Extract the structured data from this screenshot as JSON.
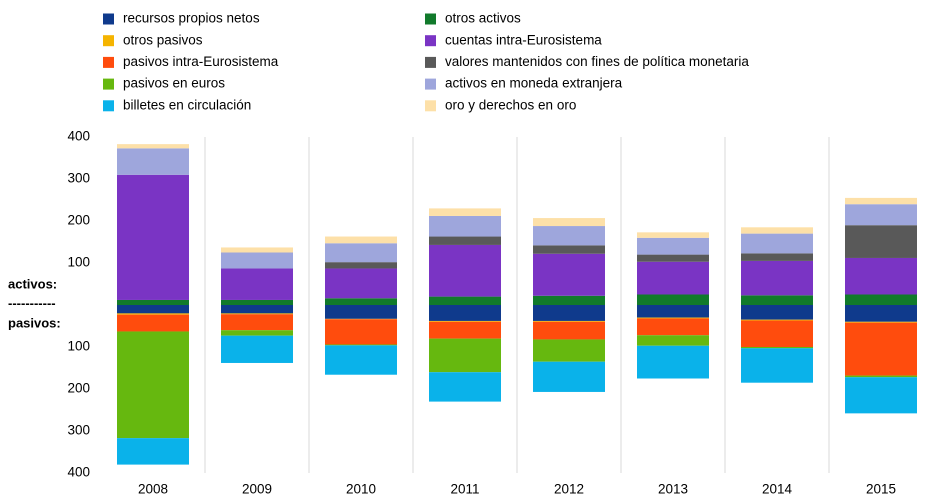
{
  "chart_data": {
    "type": "bar",
    "stacked": true,
    "categories": [
      "2008",
      "2009",
      "2010",
      "2011",
      "2012",
      "2013",
      "2014",
      "2015"
    ],
    "series": [
      {
        "name": "recursos propios netos",
        "color": "#0f3a8c",
        "values": [
          -20,
          -20,
          -33,
          -38,
          -38,
          -30,
          -35,
          -40
        ]
      },
      {
        "name": "otros activos",
        "color": "#117a2b",
        "values": [
          12,
          12,
          16,
          20,
          22,
          25,
          23,
          25
        ]
      },
      {
        "name": "otros pasivos",
        "color": "#f5b400",
        "values": [
          -3,
          -2,
          -1,
          -2,
          -2,
          -2,
          -2,
          -2
        ]
      },
      {
        "name": "cuentas intra-Eurosistema",
        "color": "#7a34c4",
        "values": [
          298,
          75,
          71,
          123,
          100,
          78,
          82,
          87
        ]
      },
      {
        "name": "pasivos intra-Eurosistema",
        "color": "#ff4c0d",
        "values": [
          -40,
          -38,
          -60,
          -40,
          -42,
          -40,
          -63,
          -126
        ]
      },
      {
        "name": "valores mantenidos con fines de política monetaria",
        "color": "#595959",
        "values": [
          0,
          0,
          15,
          20,
          20,
          17,
          18,
          78
        ]
      },
      {
        "name": "pasivos en euros",
        "color": "#66b80f",
        "values": [
          -254,
          -13,
          -2,
          -80,
          -53,
          -25,
          -3,
          -4
        ]
      },
      {
        "name": "activos en moneda extranjera",
        "color": "#9ea6dc",
        "values": [
          63,
          38,
          45,
          49,
          46,
          40,
          47,
          50
        ]
      },
      {
        "name": "billetes en circulación",
        "color": "#0ab2ea",
        "values": [
          -63,
          -65,
          -70,
          -70,
          -72,
          -78,
          -82,
          -86
        ]
      },
      {
        "name": "oro y derechos en oro",
        "color": "#fde0a8",
        "values": [
          10,
          12,
          16,
          18,
          19,
          13,
          15,
          15
        ]
      }
    ],
    "ylim": [
      -400,
      400
    ],
    "yticks": [
      400,
      300,
      200,
      100,
      {
        "value": -100,
        "label": "100"
      },
      {
        "value": -200,
        "label": "200"
      },
      {
        "value": -300,
        "label": "300"
      },
      {
        "value": -400,
        "label": "400"
      }
    ],
    "annotations": [
      "activos:",
      "-----------",
      "pasivos:"
    ],
    "legend": "top"
  }
}
